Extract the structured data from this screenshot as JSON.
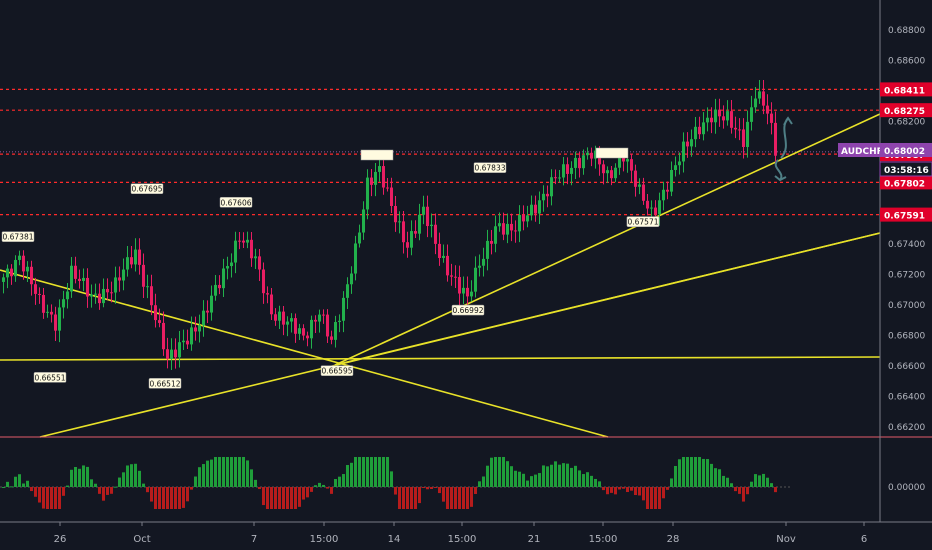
{
  "symbol": "AUDCHF",
  "last_price": "0.68002",
  "countdown": "03:58:16",
  "colors": {
    "background": "#131722",
    "up": "#26a69a",
    "up_bright": "#22b14c",
    "down": "#e91e63",
    "trendline": "#e8e229",
    "level": "#ff2a2a",
    "symbol_tag": "#8e44ad",
    "level_tag": "#e0002a"
  },
  "chart_data": {
    "type": "candlestick",
    "grid": false,
    "y_axis": {
      "range": [
        0.661,
        0.6898
      ],
      "ticks": [
        "0.68800",
        "0.68600",
        "0.68400",
        "0.68200",
        "0.68000",
        "0.67800",
        "0.67600",
        "0.67400",
        "0.67200",
        "0.67000",
        "0.66800",
        "0.66600",
        "0.66400",
        "0.66200"
      ]
    },
    "x_axis": {
      "ticks": [
        "26",
        "Oct",
        "7",
        "15:00",
        "14",
        "15:00",
        "21",
        "15:00",
        "28",
        "Nov",
        "6"
      ]
    },
    "horizontal_levels": [
      {
        "value": 0.68411,
        "label": "0.68411"
      },
      {
        "value": 0.68275,
        "label": "0.68275"
      },
      {
        "value": 0.67987,
        "label": "0.67987"
      },
      {
        "value": 0.67802,
        "label": "0.67802"
      },
      {
        "value": 0.67591,
        "label": "0.67591"
      }
    ],
    "price_annotations": [
      {
        "label": "0.67381",
        "value": 0.67381
      },
      {
        "label": "0.67695",
        "value": 0.67695
      },
      {
        "label": "0.67606",
        "value": 0.67606
      },
      {
        "label": "0.67833",
        "value": 0.67833
      },
      {
        "label": "0.66551",
        "value": 0.66551
      },
      {
        "label": "0.66512",
        "value": 0.66512
      },
      {
        "label": "0.66595",
        "value": 0.66595
      },
      {
        "label": "0.66992",
        "value": 0.66992
      },
      {
        "label": "0.67571",
        "value": 0.67571
      },
      {
        "label": "0.67571",
        "value": 0.67571
      }
    ],
    "waypoints": [
      [
        0,
        0.6718
      ],
      [
        4,
        0.6733
      ],
      [
        9,
        0.67
      ],
      [
        13,
        0.669
      ],
      [
        17,
        0.672
      ],
      [
        22,
        0.6706
      ],
      [
        28,
        0.6712
      ],
      [
        33,
        0.6735
      ],
      [
        37,
        0.6702
      ],
      [
        41,
        0.6662
      ],
      [
        45,
        0.6678
      ],
      [
        50,
        0.669
      ],
      [
        55,
        0.6722
      ],
      [
        59,
        0.6745
      ],
      [
        63,
        0.6728
      ],
      [
        67,
        0.6697
      ],
      [
        71,
        0.6688
      ],
      [
        75,
        0.6678
      ],
      [
        79,
        0.6698
      ],
      [
        82,
        0.6675
      ],
      [
        85,
        0.67
      ],
      [
        88,
        0.6738
      ],
      [
        91,
        0.678
      ],
      [
        94,
        0.6786
      ],
      [
        97,
        0.6765
      ],
      [
        101,
        0.674
      ],
      [
        105,
        0.676
      ],
      [
        109,
        0.6735
      ],
      [
        113,
        0.6715
      ],
      [
        116,
        0.6702
      ],
      [
        119,
        0.6728
      ],
      [
        123,
        0.6752
      ],
      [
        127,
        0.6746
      ],
      [
        131,
        0.6762
      ],
      [
        135,
        0.677
      ],
      [
        139,
        0.6785
      ],
      [
        143,
        0.6795
      ],
      [
        147,
        0.6798
      ],
      [
        151,
        0.6784
      ],
      [
        155,
        0.68
      ],
      [
        159,
        0.6772
      ],
      [
        162,
        0.676
      ],
      [
        166,
        0.678
      ],
      [
        170,
        0.68
      ],
      [
        174,
        0.6818
      ],
      [
        177,
        0.6825
      ],
      [
        181,
        0.682
      ],
      [
        185,
        0.681
      ],
      [
        188,
        0.684
      ],
      [
        191,
        0.6825
      ],
      [
        193,
        0.68
      ]
    ]
  }
}
